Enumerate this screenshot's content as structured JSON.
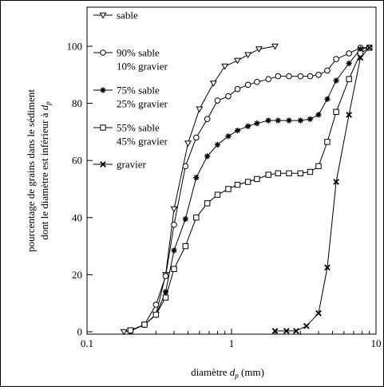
{
  "chart_data": {
    "type": "line",
    "x_scale": "log",
    "xlim": [
      0.1,
      10
    ],
    "ylim": [
      0,
      100
    ],
    "grid": false,
    "legend_position": "top-left",
    "xlabel": {
      "prefix": "diamètre ",
      "var": "d",
      "sub": "p",
      "suffix": " (mm)"
    },
    "ylabel": {
      "line1": "pourcentage de grains dans le sédiment",
      "line2_prefix": "dont le diamètre est inférieur à ",
      "line2_var": "d",
      "line2_sub": "p"
    },
    "x_ticks": [
      0.1,
      1,
      10
    ],
    "x_tick_labels": [
      "0.1",
      "1",
      "10"
    ],
    "y_ticks": [
      0,
      20,
      40,
      60,
      80,
      100
    ],
    "y_tick_labels": [
      "0",
      "20",
      "40",
      "60",
      "80",
      "100"
    ],
    "series": [
      {
        "name": [
          "sable"
        ],
        "marker": "triangle-down",
        "points": [
          [
            0.18,
            0
          ],
          [
            0.2,
            0.5
          ],
          [
            0.25,
            2.5
          ],
          [
            0.3,
            6
          ],
          [
            0.35,
            20
          ],
          [
            0.4,
            43
          ],
          [
            0.5,
            66
          ],
          [
            0.6,
            78
          ],
          [
            0.75,
            87
          ],
          [
            0.9,
            93
          ],
          [
            1.1,
            95
          ],
          [
            1.3,
            97
          ],
          [
            1.55,
            99
          ],
          [
            2.0,
            100
          ]
        ]
      },
      {
        "name": [
          "90% sable",
          "10% gravier"
        ],
        "marker": "circle",
        "points": [
          [
            0.2,
            0.3
          ],
          [
            0.25,
            2.5
          ],
          [
            0.3,
            9.5
          ],
          [
            0.35,
            19.5
          ],
          [
            0.4,
            37.5
          ],
          [
            0.48,
            58
          ],
          [
            0.57,
            68
          ],
          [
            0.68,
            74.5
          ],
          [
            0.8,
            81
          ],
          [
            0.95,
            82.5
          ],
          [
            1.1,
            85
          ],
          [
            1.3,
            86.5
          ],
          [
            1.5,
            87.5
          ],
          [
            1.8,
            88.5
          ],
          [
            2.1,
            89.5
          ],
          [
            2.5,
            89.5
          ],
          [
            3.0,
            89.5
          ],
          [
            3.5,
            89.5
          ],
          [
            4.0,
            90
          ],
          [
            4.6,
            91.5
          ],
          [
            5.3,
            95.5
          ],
          [
            6.5,
            97.5
          ],
          [
            7.8,
            99.5
          ],
          [
            9.0,
            99.5
          ]
        ]
      },
      {
        "name": [
          "75% sable",
          "25% gravier"
        ],
        "marker": "star",
        "points": [
          [
            0.2,
            0.3
          ],
          [
            0.25,
            2.5
          ],
          [
            0.3,
            6
          ],
          [
            0.35,
            14
          ],
          [
            0.4,
            28.5
          ],
          [
            0.48,
            39.5
          ],
          [
            0.57,
            54
          ],
          [
            0.68,
            61.5
          ],
          [
            0.8,
            65.5
          ],
          [
            0.95,
            68.5
          ],
          [
            1.1,
            70.5
          ],
          [
            1.3,
            72
          ],
          [
            1.5,
            73
          ],
          [
            1.8,
            74
          ],
          [
            2.1,
            74
          ],
          [
            2.5,
            74
          ],
          [
            3.0,
            74
          ],
          [
            3.5,
            74.5
          ],
          [
            4.0,
            76
          ],
          [
            4.6,
            81.5
          ],
          [
            5.3,
            88
          ],
          [
            6.5,
            94
          ],
          [
            7.8,
            99
          ],
          [
            9.0,
            99.5
          ]
        ]
      },
      {
        "name": [
          "55% sable",
          "45% gravier"
        ],
        "marker": "square",
        "points": [
          [
            0.2,
            0.5
          ],
          [
            0.25,
            2.5
          ],
          [
            0.3,
            6
          ],
          [
            0.35,
            12
          ],
          [
            0.4,
            22
          ],
          [
            0.48,
            30
          ],
          [
            0.57,
            40
          ],
          [
            0.68,
            45
          ],
          [
            0.8,
            48
          ],
          [
            0.95,
            50
          ],
          [
            1.1,
            51.5
          ],
          [
            1.3,
            52.5
          ],
          [
            1.5,
            53.5
          ],
          [
            1.8,
            55
          ],
          [
            2.1,
            55.5
          ],
          [
            2.5,
            55.5
          ],
          [
            3.0,
            55.5
          ],
          [
            3.5,
            56
          ],
          [
            4.0,
            58
          ],
          [
            4.6,
            66.5
          ],
          [
            5.3,
            77
          ],
          [
            6.5,
            88.5
          ],
          [
            7.8,
            97.5
          ],
          [
            9.0,
            99.5
          ]
        ]
      },
      {
        "name": [
          "gravier"
        ],
        "marker": "x",
        "points": [
          [
            2.0,
            0.3
          ],
          [
            2.4,
            0.3
          ],
          [
            2.8,
            0.3
          ],
          [
            3.3,
            2
          ],
          [
            4.0,
            6.5
          ],
          [
            4.6,
            22.5
          ],
          [
            5.3,
            52.5
          ],
          [
            6.5,
            76
          ],
          [
            7.8,
            96
          ],
          [
            9.0,
            99.5
          ]
        ]
      }
    ]
  }
}
